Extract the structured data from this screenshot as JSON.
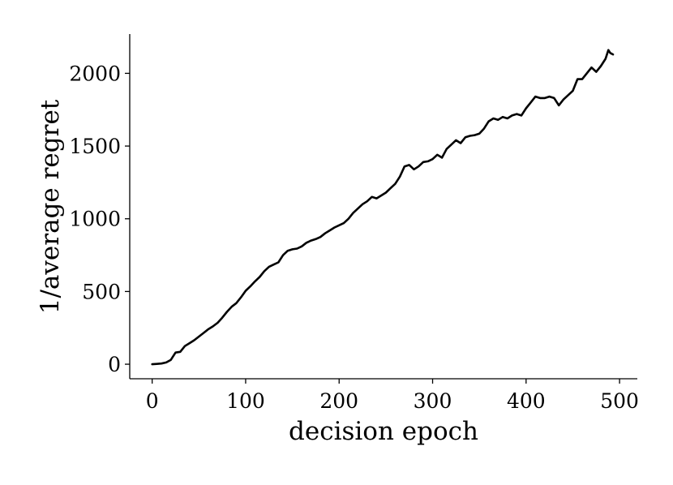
{
  "chart_data": {
    "type": "line",
    "title": "",
    "xlabel": "decision epoch",
    "ylabel": "1/average regret",
    "xlim": [
      -24,
      519
    ],
    "ylim": [
      -100,
      2270
    ],
    "xticks": [
      0,
      100,
      200,
      300,
      400,
      500
    ],
    "yticks": [
      0,
      500,
      1000,
      1500,
      2000
    ],
    "grid": false,
    "legend": "none",
    "series": [
      {
        "color": "#000000",
        "x": [
          0,
          5,
          10,
          15,
          20,
          25,
          30,
          35,
          40,
          45,
          50,
          55,
          60,
          65,
          70,
          75,
          80,
          85,
          90,
          95,
          100,
          105,
          110,
          115,
          120,
          125,
          130,
          135,
          140,
          145,
          150,
          155,
          160,
          165,
          170,
          175,
          180,
          185,
          190,
          195,
          200,
          205,
          210,
          215,
          220,
          225,
          230,
          235,
          240,
          245,
          250,
          255,
          260,
          265,
          270,
          275,
          280,
          285,
          290,
          295,
          300,
          305,
          310,
          315,
          320,
          325,
          330,
          335,
          340,
          345,
          350,
          355,
          360,
          365,
          370,
          375,
          380,
          385,
          390,
          395,
          400,
          405,
          410,
          415,
          420,
          425,
          430,
          435,
          440,
          445,
          450,
          455,
          460,
          465,
          470,
          475,
          480,
          485,
          488,
          490,
          493
        ],
        "values": [
          0,
          2,
          5,
          12,
          30,
          80,
          85,
          125,
          145,
          165,
          190,
          215,
          240,
          260,
          285,
          320,
          360,
          395,
          420,
          460,
          505,
          535,
          570,
          600,
          640,
          670,
          685,
          700,
          750,
          780,
          790,
          795,
          810,
          835,
          850,
          860,
          875,
          900,
          920,
          940,
          955,
          970,
          1000,
          1040,
          1070,
          1100,
          1120,
          1150,
          1140,
          1160,
          1180,
          1210,
          1240,
          1290,
          1360,
          1370,
          1340,
          1360,
          1390,
          1395,
          1410,
          1440,
          1420,
          1480,
          1510,
          1540,
          1520,
          1560,
          1570,
          1575,
          1585,
          1620,
          1670,
          1690,
          1680,
          1700,
          1690,
          1710,
          1720,
          1710,
          1760,
          1800,
          1840,
          1830,
          1830,
          1840,
          1830,
          1780,
          1820,
          1850,
          1880,
          1960,
          1960,
          2000,
          2040,
          2010,
          2050,
          2100,
          2160,
          2140,
          2130
        ]
      }
    ]
  }
}
